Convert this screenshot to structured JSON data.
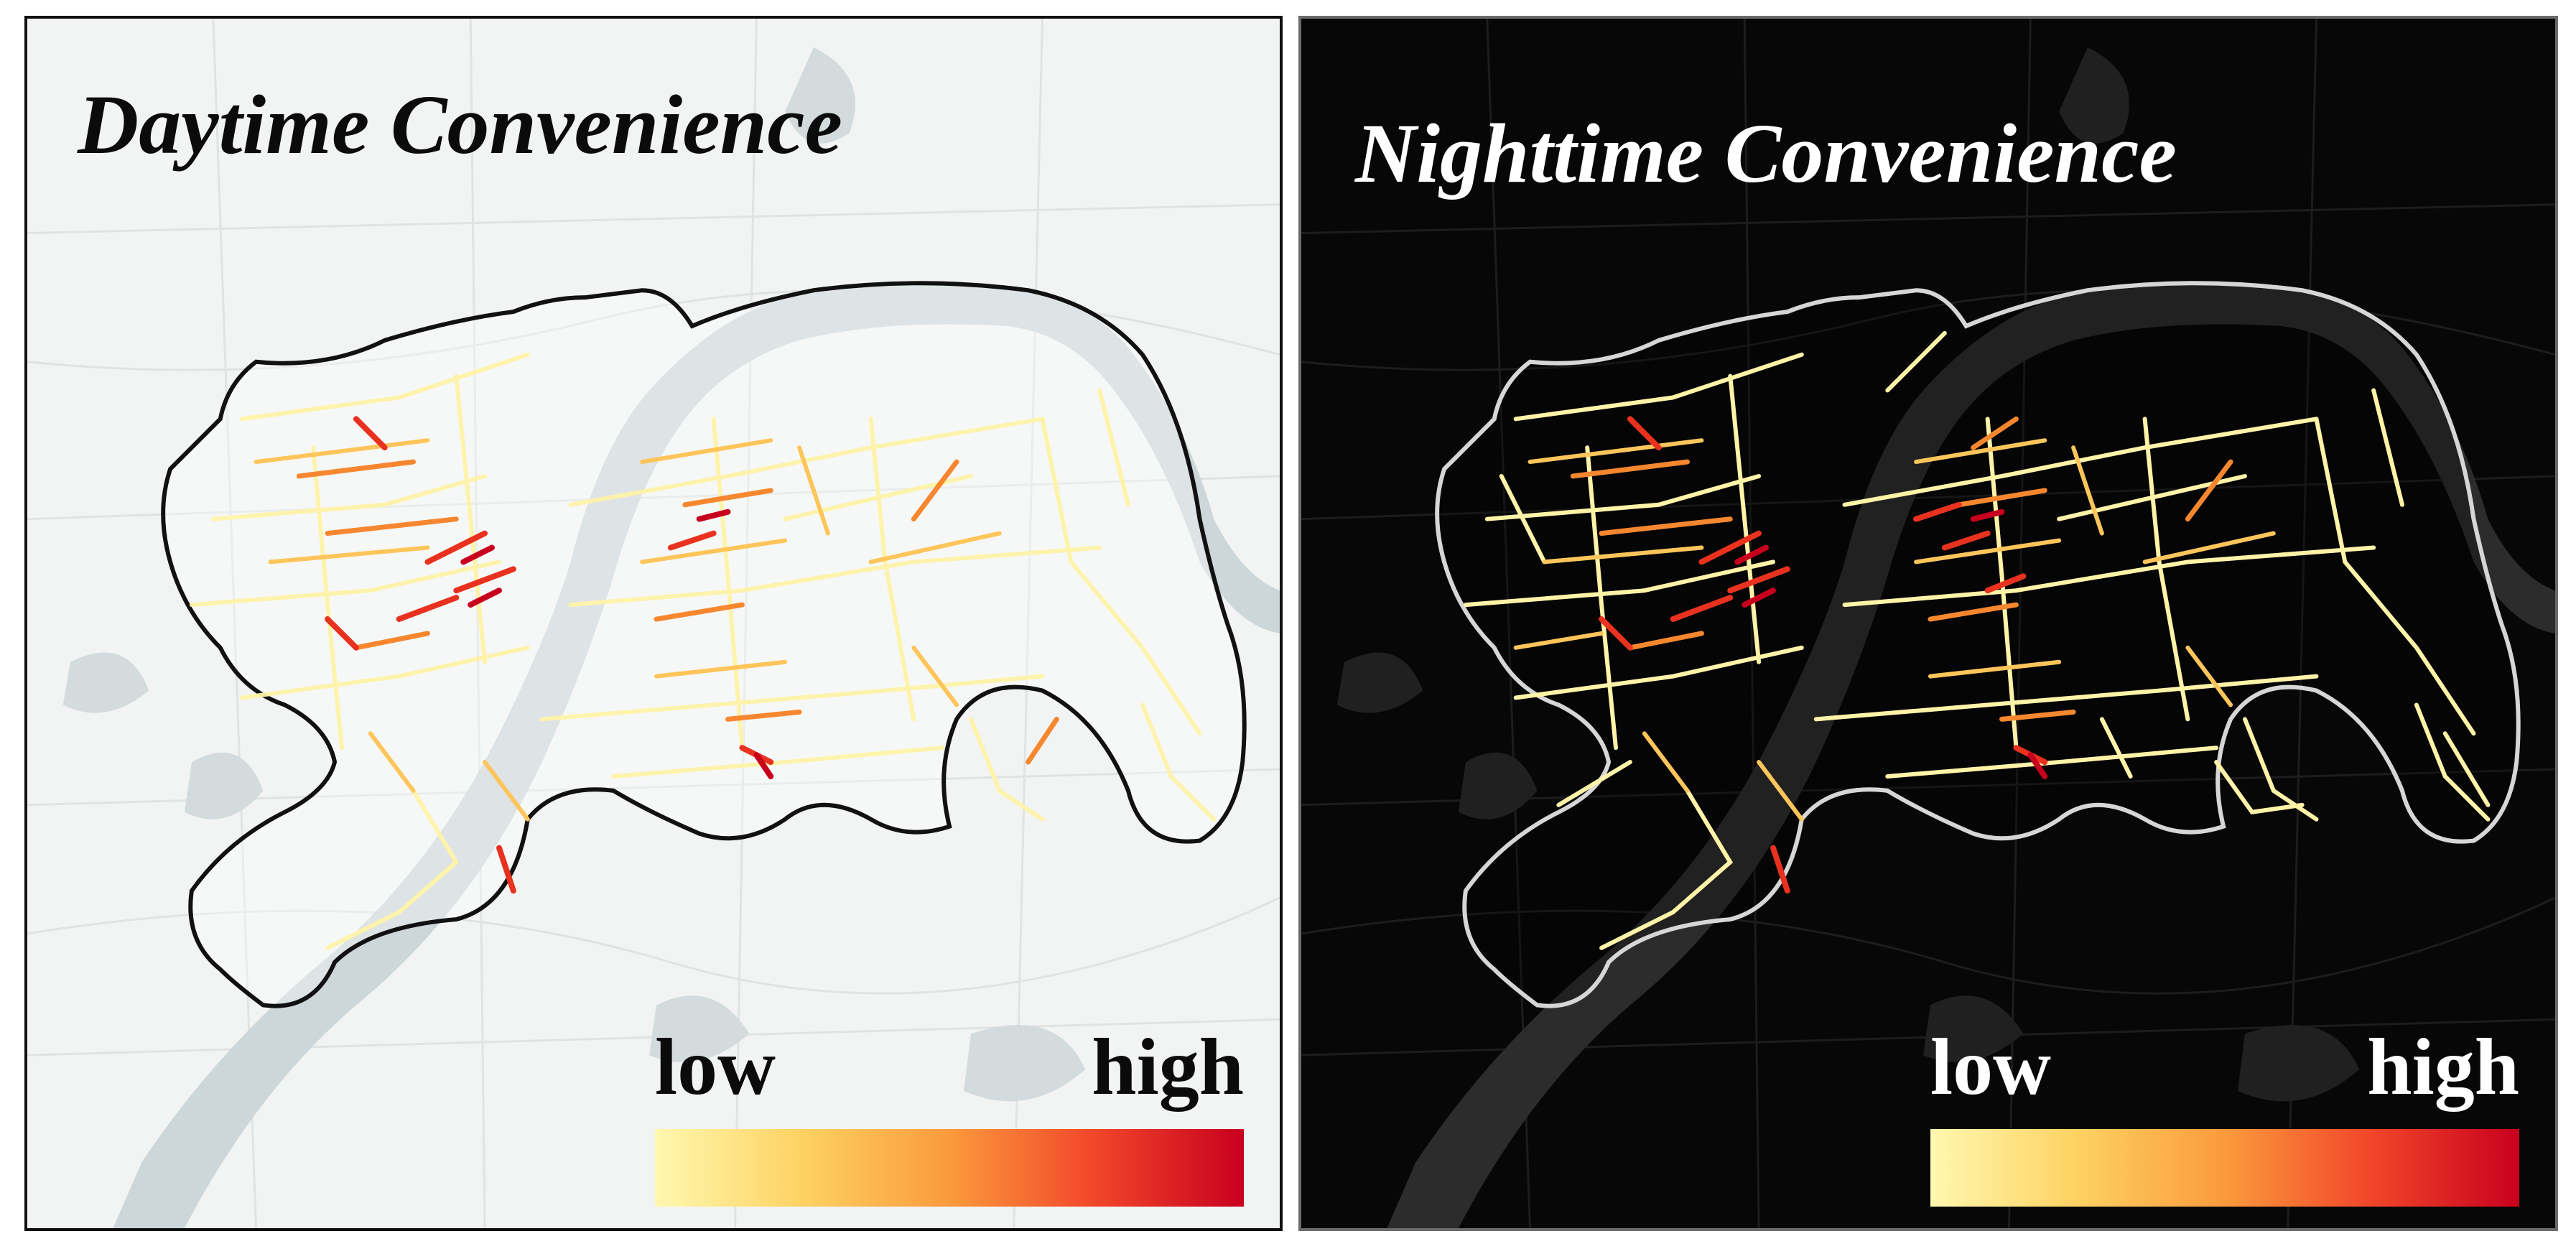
{
  "panels": {
    "day": {
      "title": "Daytime Convenience",
      "legend": {
        "low_label": "low",
        "high_label": "high"
      },
      "colors": {
        "background": "#f2f4f3",
        "water": "#cdd6d8",
        "boundary": "#111111",
        "grid_roads": "#dfe3e2",
        "ramp": [
          "#fff8b0",
          "#fdd262",
          "#fb9a3c",
          "#f1452a",
          "#c8001e"
        ]
      }
    },
    "night": {
      "title": "Nighttime Convenience",
      "legend": {
        "low_label": "low",
        "high_label": "high"
      },
      "colors": {
        "background": "#070707",
        "water": "#2c2c2c",
        "boundary": "#d6d6d6",
        "grid_roads": "#1d1d1d",
        "ramp": [
          "#fff8b0",
          "#fdd262",
          "#fb9a3c",
          "#f1452a",
          "#c8001e"
        ]
      }
    }
  },
  "legend_scale": {
    "min_label": "low",
    "max_label": "high"
  }
}
